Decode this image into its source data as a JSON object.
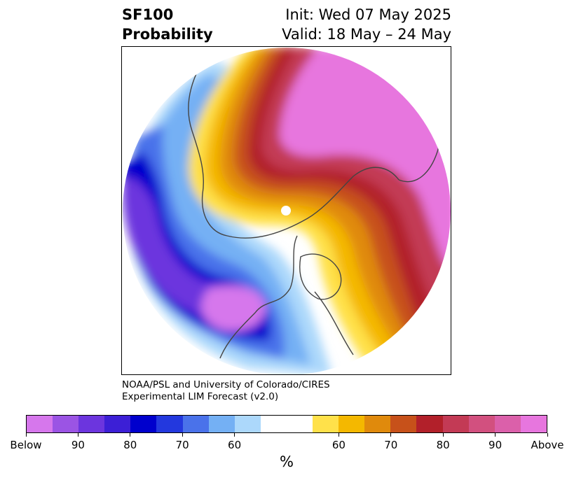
{
  "title": {
    "left_line1": "SF100",
    "left_line2": "Probability",
    "right_line1": "Init: Wed 07 May 2025",
    "right_line2": "Valid: 18 May – 24 May"
  },
  "credit": {
    "line1": "NOAA/PSL and University of Colorado/CIRES",
    "line2": "Experimental LIM Forecast (v2.0)"
  },
  "colors": {
    "below": [
      "#d677ec",
      "#9b54e4",
      "#6c35de",
      "#3c1fd6",
      "#0000cd",
      "#2338de",
      "#4a72ea",
      "#74b0f4",
      "#acd8fb"
    ],
    "neutral": "#ffffff",
    "above": [
      "#ffe14a",
      "#f4b800",
      "#e08a0c",
      "#c7511a",
      "#b2202a",
      "#c33a55",
      "#d2507f",
      "#db60aa",
      "#e776de"
    ],
    "coastline": "#444444",
    "pole_marker": "#ffffff"
  },
  "colorbar": {
    "tick_labels": [
      "Below",
      "90",
      "80",
      "70",
      "60",
      "60",
      "70",
      "80",
      "90",
      "Above"
    ],
    "unit": "%"
  },
  "map": {
    "projection": "polar stereographic (north pole centered)",
    "variable": "SF100 probability"
  }
}
